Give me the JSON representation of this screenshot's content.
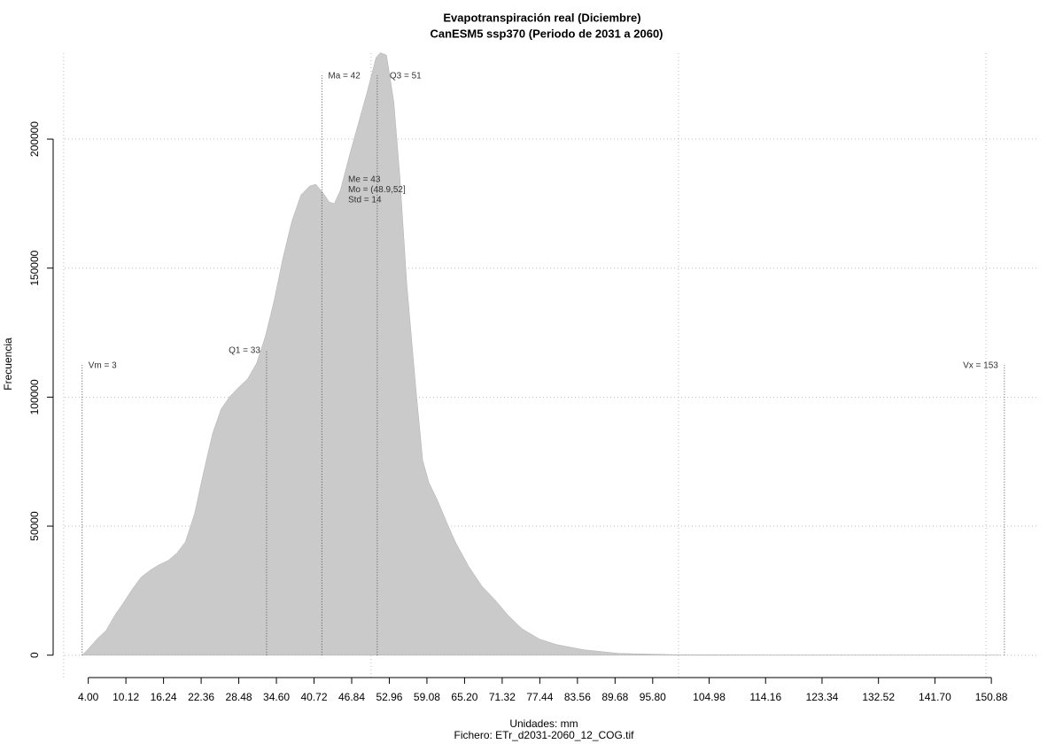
{
  "chart_data": {
    "type": "area",
    "title": "Evapotranspiración real (Diciembre)",
    "subtitle": "CanESM5 ssp370 (Periodo de 2031 a 2060)",
    "x_label": "Unidades: mm",
    "caption": "Fichero: ETr_d2031-2060_12_COG.tif",
    "y_label": "Frecuencia",
    "color": "#cacaca",
    "grid": true,
    "xlim": [
      -2,
      153.6
    ],
    "ylim": [
      -8000,
      234000
    ],
    "xticks": [
      {
        "value": 4,
        "label": "4.00"
      },
      10.12,
      16.24,
      22.36,
      28.48,
      {
        "value": 34.6,
        "label": "34.60"
      },
      40.72,
      46.84,
      52.96,
      59.08,
      {
        "value": 65.2,
        "label": "65.20"
      },
      71.32,
      77.44,
      83.56,
      89.68,
      {
        "value": 95.8,
        "label": "95.80"
      },
      104.98,
      114.16,
      123.34,
      132.52,
      {
        "value": 141.7,
        "label": "141.70"
      },
      150.88
    ],
    "xgrid": [
      0,
      50,
      100,
      150
    ],
    "yticks": [
      0,
      50000,
      100000,
      150000,
      200000
    ],
    "x": [
      3,
      4,
      5.4,
      6.9,
      8.3,
      9.8,
      11.2,
      12.6,
      14.1,
      15.5,
      17.0,
      18.4,
      19.8,
      21.3,
      22.7,
      24.2,
      25.6,
      27.0,
      28.5,
      29.9,
      31.4,
      32.8,
      34.2,
      35.7,
      37.1,
      38.6,
      40.0,
      41.0,
      42.2,
      43.2,
      44.0,
      45.0,
      46.5,
      47.9,
      49.3,
      50.8,
      51.5,
      52.5,
      53.7,
      54.7,
      55.8,
      57.3,
      58.4,
      59.4,
      60.8,
      62.3,
      63.7,
      65.9,
      68.0,
      70.2,
      72.3,
      74.5,
      77.4,
      80.2,
      84.6,
      90.3,
      99,
      112,
      152.3
    ],
    "values": [
      0,
      2400,
      6200,
      9600,
      15400,
      20600,
      25700,
      30200,
      33000,
      35000,
      36700,
      39500,
      43900,
      54900,
      70300,
      85800,
      95400,
      100200,
      103900,
      107000,
      113200,
      123500,
      137200,
      154400,
      168100,
      178400,
      181800,
      182500,
      179100,
      175600,
      175000,
      180100,
      193800,
      205800,
      217800,
      231600,
      233500,
      232600,
      214400,
      185200,
      144100,
      102900,
      75500,
      66900,
      60000,
      51500,
      43900,
      34300,
      26800,
      21300,
      15400,
      10300,
      6200,
      4100,
      2100,
      700,
      200,
      50,
      0
    ],
    "annotations": [
      {
        "label": "Vm = 3",
        "value": 3
      },
      {
        "label": "Q1 = 33",
        "value": 33
      },
      {
        "label": "Ma = 42",
        "value": 42
      },
      {
        "label": "Q3 = 51",
        "value": 51
      },
      {
        "label": "Vx = 153",
        "value": 153
      }
    ],
    "stats": [
      "Me = 43",
      "Mo = (48.9,52]",
      "Std = 14"
    ]
  }
}
